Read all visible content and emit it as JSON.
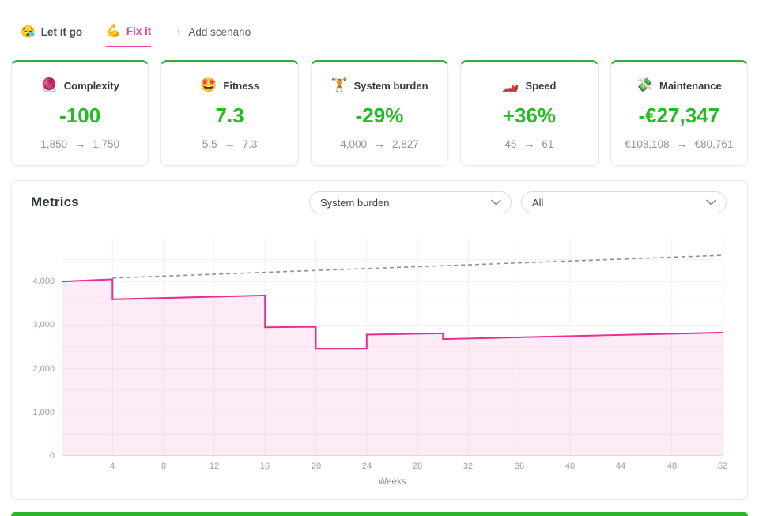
{
  "tabs": [
    {
      "emoji": "😪",
      "label": "Let it go",
      "active": false
    },
    {
      "emoji": "💪",
      "label": "Fix it",
      "active": true
    },
    {
      "emoji": "+",
      "label": "Add scenario",
      "active": false
    }
  ],
  "cards": [
    {
      "emoji": "🧶",
      "title": "Complexity",
      "value": "-100",
      "from": "1,850",
      "to": "1,750"
    },
    {
      "emoji": "🤩",
      "title": "Fitness",
      "value": "7.3",
      "from": "5.5",
      "to": "7.3"
    },
    {
      "emoji": "🏋️",
      "title": "System burden",
      "value": "-29%",
      "from": "4,000",
      "to": "2,827"
    },
    {
      "emoji": "🏎️",
      "title": "Speed",
      "value": "+36%",
      "from": "45",
      "to": "61"
    },
    {
      "emoji": "💸",
      "title": "Maintenance",
      "value": "-€27,347",
      "from": "€108,108",
      "to": "€80,761"
    }
  ],
  "glyphs": {
    "arrow": "→"
  },
  "metrics_panel": {
    "title": "Metrics",
    "metric_select_value": "System burden",
    "filter_select_value": "All"
  },
  "colors": {
    "accent_green": "#2db32d",
    "value_green": "#27b927",
    "accent_pink": "#f23b9d",
    "line_pink": "#e5308f",
    "area_fill": "rgba(229,48,143,0.09)",
    "baseline_gray": "#8f9094",
    "grid": "#f0f1f4"
  },
  "chart_data": {
    "type": "area",
    "xlabel": "Weeks",
    "x_domain": [
      0,
      52
    ],
    "y_domain": [
      0,
      5000
    ],
    "x_ticks": [
      4,
      8,
      12,
      16,
      20,
      24,
      28,
      32,
      36,
      40,
      44,
      48,
      52
    ],
    "y_ticks": [
      {
        "value": 0,
        "label": "0"
      },
      {
        "value": 1000,
        "label": "1,000"
      },
      {
        "value": 2000,
        "label": "2,000"
      },
      {
        "value": 3000,
        "label": "3,000"
      },
      {
        "value": 4000,
        "label": "4,000"
      }
    ],
    "y_minor_step": 500,
    "grid_color": "#f0f1f4",
    "legend": "none",
    "series": [
      {
        "name": "system-burden-fix-it",
        "style": "solid",
        "color": "#e5308f",
        "fill": "rgba(229,48,143,0.09)",
        "width": 2,
        "points": [
          [
            0,
            4000
          ],
          [
            4,
            4050
          ],
          [
            4,
            3590
          ],
          [
            16,
            3680
          ],
          [
            16,
            2950
          ],
          [
            20,
            2960
          ],
          [
            20,
            2460
          ],
          [
            24,
            2460
          ],
          [
            24,
            2780
          ],
          [
            30,
            2810
          ],
          [
            30,
            2680
          ],
          [
            52,
            2827
          ]
        ]
      },
      {
        "name": "baseline-let-it-go",
        "style": "dashed",
        "color": "#8f9094",
        "width": 1.6,
        "points": [
          [
            4,
            4080
          ],
          [
            52,
            4600
          ]
        ]
      }
    ]
  }
}
